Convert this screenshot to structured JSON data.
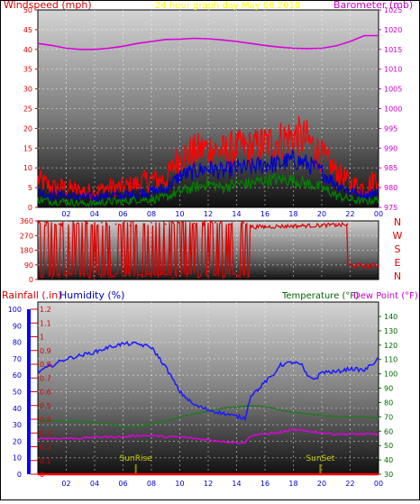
{
  "colors": {
    "wind": "#ff0000",
    "gust_avg": "#0000cc",
    "gust_min": "#008000",
    "barometer": "#dd00dd",
    "direction": "#dd0000",
    "humidity": "#1a1aff",
    "temperature": "#1f7a1f",
    "dewpoint": "#e000e0",
    "rain": "#0000ff",
    "header_yellow": "#ffff00",
    "axis_red": "#dd0000",
    "axis_magenta": "#cc00cc",
    "axis_blue": "#0000cc",
    "axis_green": "#006600",
    "marker": "#888800"
  },
  "top_chart": {
    "left_title": "Windspeed (mph)",
    "center_title": "24 hour graph day    May 08 2018",
    "right_title": "Barometer (mb)",
    "left_ticks": [
      "0",
      "5",
      "10",
      "15",
      "20",
      "25",
      "30",
      "35",
      "40",
      "45",
      "50"
    ],
    "right_ticks": [
      "975",
      "980",
      "985",
      "990",
      "995",
      "1000",
      "1005",
      "1010",
      "1015",
      "1020",
      "1025"
    ],
    "x_ticks": [
      "02",
      "04",
      "06",
      "08",
      "10",
      "12",
      "14",
      "16",
      "18",
      "20",
      "22",
      "00"
    ]
  },
  "middle_chart": {
    "left_ticks": [
      "0",
      "90",
      "180",
      "270",
      "360"
    ],
    "right_labels": [
      "N",
      "W",
      "S",
      "E",
      "N"
    ],
    "x_ticks": [
      "02",
      "04",
      "06",
      "08",
      "10",
      "12",
      "14",
      "16",
      "18",
      "20",
      "22",
      "00"
    ]
  },
  "bottom_chart": {
    "rain_title": "Rainfall (.in)",
    "humidity_title": "Humidity (%)",
    "temp_title": "Temperature (°F)",
    "dew_title": "Dew Point (°F)",
    "rain_ticks": [
      "0",
      "0.1",
      "0.2",
      "0.3",
      "0.4",
      "0.5",
      "0.6",
      "0.7",
      "0.8",
      "0.9",
      "1",
      "1.1",
      "1.2"
    ],
    "humidity_ticks": [
      "0",
      "10",
      "20",
      "30",
      "40",
      "50",
      "60",
      "70",
      "80",
      "90",
      "100"
    ],
    "temp_ticks": [
      "30",
      "40",
      "50",
      "60",
      "70",
      "80",
      "90",
      "100",
      "110",
      "120",
      "130",
      "140"
    ],
    "x_ticks": [
      "02",
      "04",
      "06",
      "08",
      "10",
      "12",
      "14",
      "16",
      "18",
      "20",
      "22",
      "00"
    ],
    "sunrise_label": "SunRise",
    "sunset_label": "SunSet"
  },
  "chart_data": [
    {
      "type": "line",
      "x_unit": "hour",
      "x_range": [
        0,
        24
      ],
      "ylim_left": [
        0,
        50
      ],
      "ylim_right": [
        975,
        1025
      ],
      "series": [
        {
          "name": "Barometer (mb)",
          "axis": "right",
          "x": [
            0,
            1,
            2,
            3,
            4,
            5,
            6,
            7,
            8,
            9,
            10,
            11,
            12,
            13,
            14,
            15,
            16,
            17,
            18,
            19,
            20,
            21,
            22,
            23,
            24
          ],
          "values": [
            1016.5,
            1016,
            1015.3,
            1015,
            1015,
            1015.3,
            1015.8,
            1016.5,
            1017,
            1017.5,
            1017.6,
            1017.8,
            1017.7,
            1017.4,
            1017,
            1016.5,
            1016,
            1015.6,
            1015.3,
            1015.2,
            1015.3,
            1015.9,
            1017,
            1018.5,
            1018.5
          ]
        },
        {
          "name": "Windspeed (mph)",
          "axis": "left",
          "x": [
            0,
            1,
            2,
            3,
            4,
            5,
            6,
            7,
            8,
            9,
            10,
            11,
            12,
            13,
            14,
            15,
            16,
            17,
            18,
            19,
            20,
            21,
            22,
            23,
            24
          ],
          "values": [
            7,
            5,
            5,
            4,
            4,
            5,
            5,
            6,
            7,
            7,
            13,
            14,
            15,
            14,
            15,
            15,
            16,
            17,
            18,
            17,
            13,
            9,
            6,
            5,
            8
          ]
        },
        {
          "values": [
            4,
            3,
            3,
            2.5,
            2.5,
            3,
            3,
            3.5,
            4,
            4.5,
            8,
            9,
            10,
            9,
            10,
            10,
            11,
            11,
            12,
            11,
            9,
            6,
            4,
            3,
            4
          ]
        },
        {
          "values": [
            2,
            1.5,
            1.5,
            1,
            1,
            1.5,
            1.5,
            2,
            2,
            2.5,
            4,
            5,
            6,
            5,
            6,
            6,
            7,
            7,
            7,
            6,
            5,
            3,
            2,
            1.5,
            2
          ]
        }
      ]
    },
    {
      "type": "scatter",
      "x_unit": "hour",
      "x_range": [
        0,
        24
      ],
      "ylim": [
        0,
        360
      ],
      "series": [
        {
          "x": [
            0,
            0.5,
            1,
            1.5,
            2,
            2.5,
            3,
            3.5,
            4,
            4.5,
            5,
            5.5,
            6,
            6.5,
            7,
            7.5,
            8,
            8.5,
            9,
            9.5,
            10,
            10.5,
            11,
            11.5,
            12,
            12.5,
            13,
            13.5,
            14,
            14.5,
            15,
            16,
            17,
            18,
            19,
            20,
            21,
            21.8,
            22,
            22.5,
            23,
            23.5,
            24
          ],
          "values": [
            20,
            350,
            10,
            340,
            15,
            355,
            25,
            345,
            5,
            350,
            15,
            340,
            20,
            330,
            10,
            20,
            350,
            30,
            340,
            10,
            350,
            20,
            345,
            30,
            10,
            350,
            20,
            340,
            15,
            350,
            320,
            320,
            325,
            330,
            335,
            330,
            340,
            340,
            90,
            80,
            85,
            90,
            85
          ]
        }
      ]
    },
    {
      "type": "line",
      "x_unit": "hour",
      "x_range": [
        0,
        24
      ],
      "ylim_humidity": [
        0,
        100
      ],
      "ylim_rain": [
        0,
        1.2
      ],
      "ylim_temp": [
        30,
        145
      ],
      "series": [
        {
          "name": "Humidity (%)",
          "axis": "humidity",
          "x": [
            0,
            1,
            2,
            3,
            4,
            5,
            6,
            7,
            8,
            9,
            10,
            11,
            12,
            13,
            14,
            14.6,
            15,
            15.6,
            16,
            16.6,
            17,
            18,
            18.6,
            19,
            19.6,
            20,
            21,
            22,
            23,
            24
          ],
          "values": [
            62,
            66,
            70,
            72,
            74,
            77,
            79,
            79,
            77,
            65,
            50,
            42,
            39,
            37,
            35,
            34,
            48,
            52,
            56,
            60,
            66,
            68,
            66,
            59,
            58,
            62,
            62,
            64,
            63,
            70
          ]
        },
        {
          "name": "Temperature (°F)",
          "axis": "temp",
          "x": [
            0,
            1,
            2,
            3,
            4,
            5,
            6,
            7,
            8,
            9,
            10,
            11,
            12,
            13,
            14,
            15,
            16,
            17,
            18,
            19,
            20,
            21,
            22,
            23,
            24
          ],
          "values": [
            67,
            67,
            67,
            67,
            66,
            65,
            63,
            63,
            65,
            67,
            70,
            72,
            74,
            76,
            77,
            78,
            77,
            75,
            73,
            72,
            71,
            70,
            70,
            70,
            69
          ]
        },
        {
          "name": "Dew Point (°F)",
          "axis": "temp",
          "x": [
            0,
            1,
            2,
            3,
            4,
            5,
            6,
            7,
            8,
            9,
            10,
            11,
            12,
            13,
            14,
            14.6,
            15,
            16,
            17,
            18,
            19,
            20,
            21,
            22,
            23,
            24
          ],
          "values": [
            55,
            55,
            55,
            55,
            56,
            56,
            56,
            57,
            57,
            56,
            56,
            55,
            54,
            53,
            52,
            52,
            57,
            58,
            59,
            61,
            60,
            59,
            58,
            58,
            58,
            58
          ]
        },
        {
          "name": "Rainfall (.in)",
          "axis": "rain",
          "x": [
            0,
            24
          ],
          "values": [
            0,
            0
          ]
        }
      ],
      "markers": [
        {
          "label": "SunRise",
          "x": 6.9
        },
        {
          "label": "SunSet",
          "x": 19.9
        }
      ]
    }
  ]
}
